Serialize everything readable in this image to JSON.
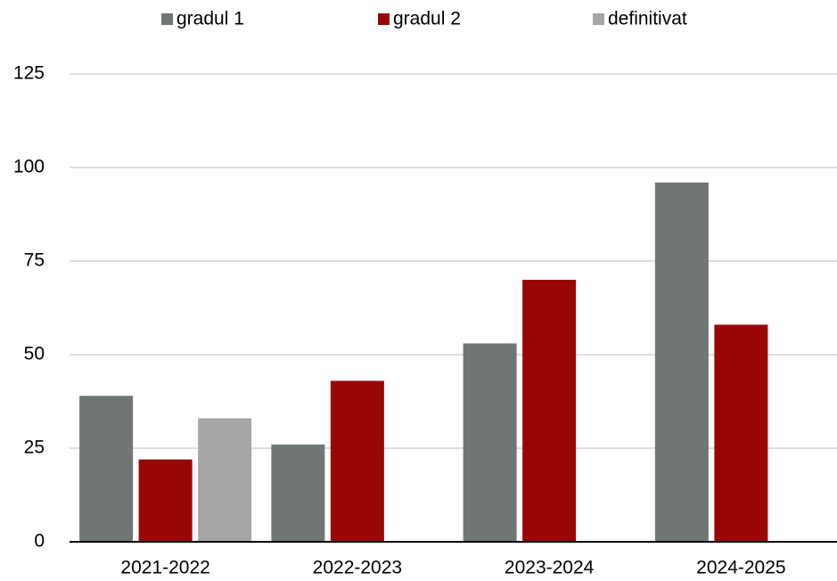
{
  "chart_data": {
    "type": "bar",
    "categories": [
      "2021-2022",
      "2022-2023",
      "2023-2024",
      "2024-2025"
    ],
    "series": [
      {
        "name": "gradul 1",
        "color": "#707673",
        "values": [
          39,
          26,
          53,
          96
        ]
      },
      {
        "name": "gradul 2",
        "color": "#990606",
        "values": [
          22,
          43,
          70,
          58
        ]
      },
      {
        "name": "definitivat",
        "color": "#a6a6a6",
        "values": [
          33,
          null,
          null,
          null
        ]
      }
    ],
    "ylim": [
      0,
      125
    ],
    "yticks": [
      0,
      25,
      50,
      75,
      100,
      125
    ],
    "grid": true,
    "legend": "top"
  }
}
